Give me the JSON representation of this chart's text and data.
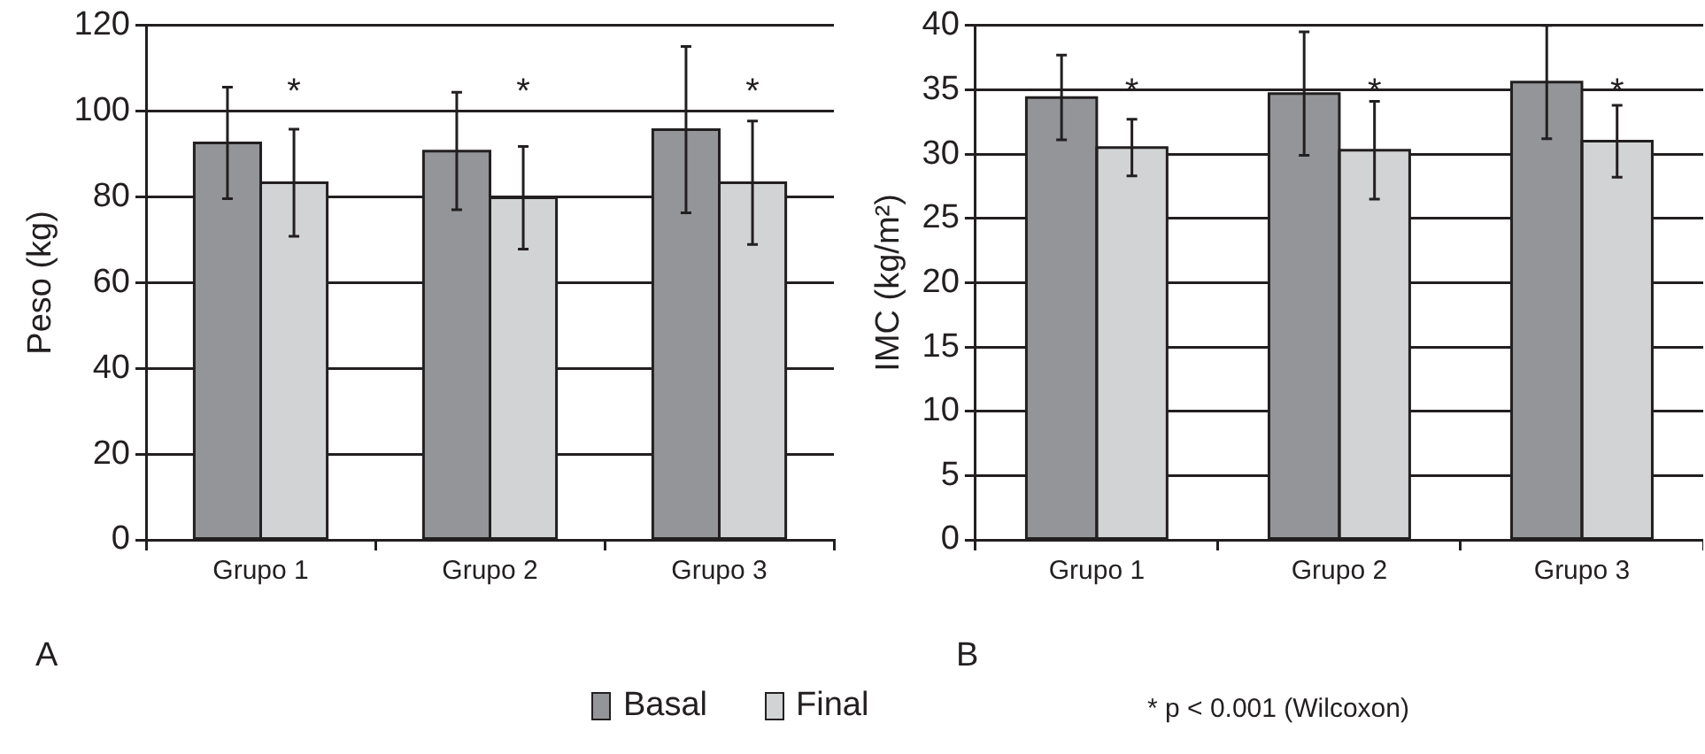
{
  "chart_data": [
    {
      "type": "bar",
      "ylabel": "Peso (kg)",
      "categories": [
        "Grupo 1",
        "Grupo 2",
        "Grupo 3"
      ],
      "series": [
        {
          "name": "Basal",
          "color": "#939598",
          "values": [
            92.6,
            90.7,
            95.7
          ],
          "errors": [
            13,
            13.7,
            19.4
          ]
        },
        {
          "name": "Final",
          "color": "#d1d3d4",
          "values": [
            83.3,
            79.8,
            83.3
          ],
          "errors": [
            12.5,
            12,
            14.4
          ]
        }
      ],
      "ylim": [
        0,
        120
      ],
      "yticks": [
        0,
        20,
        40,
        60,
        80,
        100,
        120
      ],
      "grid": "y",
      "legend": "bottom",
      "annotations": [
        "*",
        "*",
        "*",
        "A"
      ]
    },
    {
      "type": "bar",
      "ylabel": "IMC (kg/m²)",
      "categories": [
        "Grupo 1",
        "Grupo 2",
        "Grupo 3"
      ],
      "series": [
        {
          "color": "#939598",
          "values": [
            34.4,
            34.7,
            35.6
          ],
          "errors": [
            3.3,
            4.8,
            4.4
          ]
        },
        {
          "color": "#d1d3d4",
          "values": [
            30.5,
            30.3,
            31.0
          ],
          "errors": [
            2.2,
            3.8,
            2.8
          ]
        }
      ],
      "ylim": [
        0,
        40
      ],
      "yticks": [
        0,
        5,
        10,
        15,
        20,
        25,
        30,
        35,
        40
      ],
      "grid": "y",
      "annotations": [
        "*",
        "*",
        "*",
        "B",
        "* p < 0.001 (Wilcoxon)"
      ]
    }
  ]
}
